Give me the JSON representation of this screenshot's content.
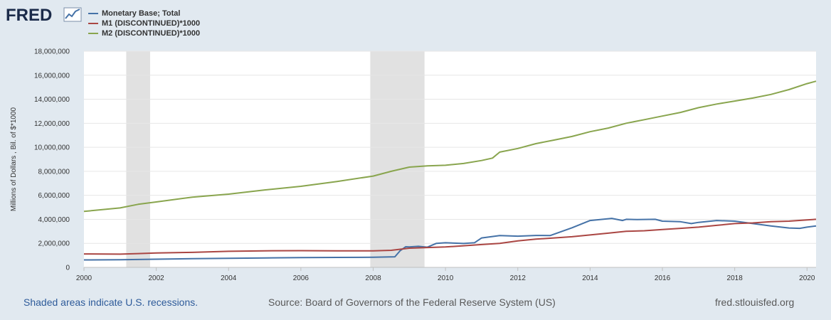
{
  "brand": {
    "logo_text": "FRED"
  },
  "colors": {
    "monetary_base": "#4572a7",
    "m1": "#aa4643",
    "m2": "#89a54e",
    "recession": "#e1e1e1"
  },
  "chart_data": {
    "type": "line",
    "title": "",
    "xlabel": "",
    "ylabel": "Millions of Dollars , Bil. of $*1000",
    "xlim": [
      2000.0,
      2020.25
    ],
    "ylim": [
      0,
      18000000
    ],
    "grid": true,
    "legend_position": "top-left",
    "x_ticks": [
      "2000",
      "2002",
      "2004",
      "2006",
      "2008",
      "2010",
      "2012",
      "2014",
      "2016",
      "2018",
      "2020"
    ],
    "y_ticks": [
      "0",
      "2,000,000",
      "4,000,000",
      "6,000,000",
      "8,000,000",
      "10,000,000",
      "12,000,000",
      "14,000,000",
      "16,000,000",
      "18,000,000"
    ],
    "recessions": [
      [
        2001.17,
        2001.83
      ],
      [
        2007.92,
        2009.42
      ]
    ],
    "series": [
      {
        "name": "Monetary Base; Total",
        "color": "#4572a7",
        "x": [
          2000.0,
          2001.0,
          2002.0,
          2003.0,
          2004.0,
          2005.0,
          2006.0,
          2007.0,
          2008.0,
          2008.6,
          2008.75,
          2008.9,
          2009.0,
          2009.25,
          2009.5,
          2009.75,
          2010.0,
          2010.5,
          2010.8,
          2011.0,
          2011.5,
          2012.0,
          2012.5,
          2012.9,
          2013.5,
          2014.0,
          2014.6,
          2014.9,
          2015.0,
          2015.3,
          2015.8,
          2016.0,
          2016.5,
          2016.8,
          2017.0,
          2017.5,
          2018.0,
          2018.5,
          2019.0,
          2019.5,
          2019.8,
          2020.0,
          2020.25
        ],
        "values": [
          620000,
          640000,
          680000,
          720000,
          750000,
          790000,
          810000,
          830000,
          840000,
          880000,
          1400000,
          1720000,
          1700000,
          1750000,
          1680000,
          2000000,
          2050000,
          1990000,
          2050000,
          2450000,
          2650000,
          2600000,
          2660000,
          2650000,
          3300000,
          3900000,
          4080000,
          3900000,
          4000000,
          3980000,
          4000000,
          3850000,
          3800000,
          3650000,
          3750000,
          3900000,
          3850000,
          3650000,
          3450000,
          3280000,
          3250000,
          3350000,
          3450000
        ]
      },
      {
        "name": "M1 (DISCONTINUED)*1000",
        "color": "#aa4643",
        "x": [
          2000.0,
          2001.0,
          2001.5,
          2002.0,
          2003.0,
          2004.0,
          2005.0,
          2006.0,
          2007.0,
          2008.0,
          2008.5,
          2009.0,
          2009.5,
          2010.0,
          2010.5,
          2011.0,
          2011.5,
          2012.0,
          2012.5,
          2013.0,
          2013.5,
          2014.0,
          2014.5,
          2015.0,
          2015.5,
          2016.0,
          2016.5,
          2017.0,
          2017.5,
          2018.0,
          2018.5,
          2019.0,
          2019.5,
          2020.0,
          2020.25
        ],
        "values": [
          1120000,
          1100000,
          1150000,
          1200000,
          1250000,
          1340000,
          1380000,
          1390000,
          1380000,
          1380000,
          1420000,
          1600000,
          1650000,
          1700000,
          1800000,
          1900000,
          2000000,
          2200000,
          2350000,
          2450000,
          2550000,
          2700000,
          2850000,
          3000000,
          3050000,
          3150000,
          3250000,
          3350000,
          3500000,
          3650000,
          3700000,
          3800000,
          3850000,
          3950000,
          4000000
        ]
      },
      {
        "name": "M2 (DISCONTINUED)*1000",
        "color": "#89a54e",
        "x": [
          2000.0,
          2001.0,
          2001.5,
          2002.0,
          2003.0,
          2004.0,
          2005.0,
          2006.0,
          2007.0,
          2008.0,
          2008.5,
          2009.0,
          2009.5,
          2010.0,
          2010.5,
          2011.0,
          2011.3,
          2011.5,
          2012.0,
          2012.5,
          2013.0,
          2013.5,
          2014.0,
          2014.5,
          2015.0,
          2015.5,
          2016.0,
          2016.5,
          2017.0,
          2017.5,
          2018.0,
          2018.5,
          2019.0,
          2019.5,
          2020.0,
          2020.25
        ],
        "values": [
          4660000,
          4950000,
          5250000,
          5450000,
          5850000,
          6100000,
          6450000,
          6750000,
          7150000,
          7600000,
          8000000,
          8350000,
          8450000,
          8500000,
          8650000,
          8900000,
          9100000,
          9600000,
          9900000,
          10300000,
          10600000,
          10900000,
          11300000,
          11600000,
          12000000,
          12300000,
          12600000,
          12900000,
          13300000,
          13600000,
          13850000,
          14100000,
          14400000,
          14800000,
          15300000,
          15500000
        ]
      }
    ]
  },
  "footer": {
    "notes": "Shaded areas indicate U.S. recessions.",
    "source": "Source: Board of Governors of the Federal Reserve System (US)",
    "site": "fred.stlouisfed.org"
  }
}
